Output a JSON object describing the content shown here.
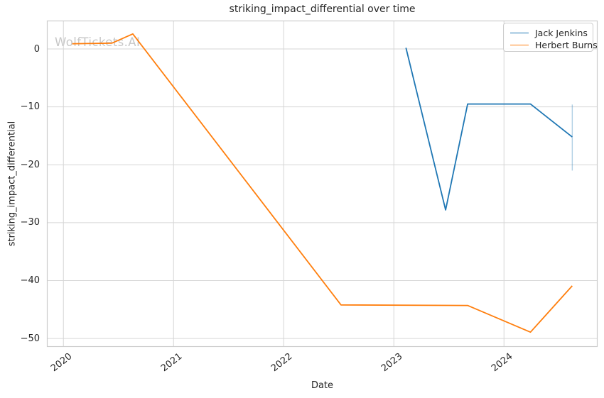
{
  "figure": {
    "watermark": "WolfTickets.AI"
  },
  "chart_data": {
    "type": "line",
    "title": "striking_impact_differential over time",
    "xlabel": "Date",
    "ylabel": "striking_impact_differential",
    "x_ticks": [
      2020,
      2021,
      2022,
      2023,
      2024
    ],
    "y_ticks": [
      0,
      -10,
      -20,
      -30,
      -40,
      -50
    ],
    "xlim": [
      2019.85,
      2024.85
    ],
    "ylim": [
      -51.45,
      4.9
    ],
    "grid": true,
    "legend": {
      "position": "upper right"
    },
    "series": [
      {
        "name": "Jack Jenkins",
        "color": "#1f77b4",
        "x": [
          2023.11,
          2023.47,
          2023.67,
          2024.24,
          2024.62
        ],
        "y": [
          0.2,
          -27.8,
          -9.5,
          -9.5,
          -15.2
        ]
      },
      {
        "name": "Herbert Burns",
        "color": "#ff7f0e",
        "x": [
          2020.08,
          2020.44,
          2020.63,
          2022.52,
          2023.67,
          2024.24,
          2024.62
        ],
        "y": [
          0.9,
          1.0,
          2.6,
          -44.2,
          -44.3,
          -48.9,
          -40.9
        ]
      }
    ],
    "error_bars": [
      {
        "series": "Jack Jenkins",
        "x": 2024.62,
        "y_low": -21.0,
        "y_high": -9.6,
        "color": "rgba(31,119,180,0.35)"
      }
    ]
  }
}
